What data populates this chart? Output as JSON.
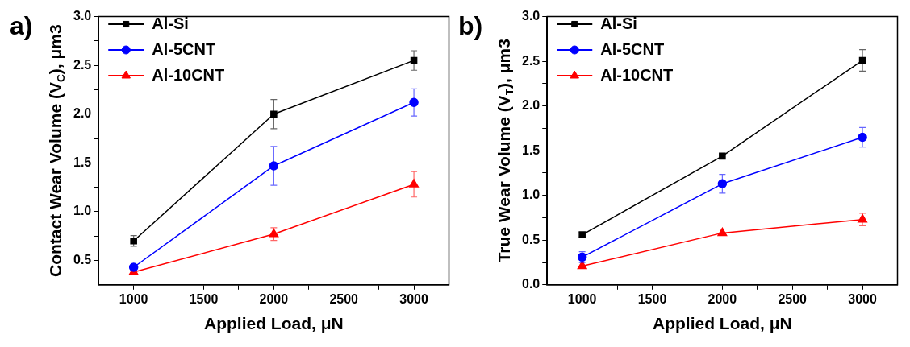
{
  "chart_data": [
    {
      "type": "line",
      "annotations": [
        "a)"
      ],
      "xlabel": "Applied Load, μN",
      "ylabel": "Contact Wear Volume (V$_{C}$), μm3",
      "x": [
        1000,
        2000,
        3000
      ],
      "xlim": [
        750,
        3250
      ],
      "xticks": [
        1000,
        {
          "value": 1250,
          "label": null
        },
        1500,
        {
          "value": 1750,
          "label": null
        },
        2000,
        {
          "value": 2250,
          "label": null
        },
        2500,
        {
          "value": 2750,
          "label": null
        },
        3000
      ],
      "ylim": [
        0.25,
        3.0
      ],
      "yticks": [
        0.5,
        {
          "value": 0.75,
          "label": null
        },
        {
          "value": 1,
          "label": "1.0"
        },
        {
          "value": 1.25,
          "label": null
        },
        1.5,
        {
          "value": 1.75,
          "label": null
        },
        {
          "value": 2,
          "label": "2.0"
        },
        {
          "value": 2.25,
          "label": null
        },
        2.5,
        {
          "value": 2.75,
          "label": null
        },
        {
          "value": 3,
          "label": "3.0"
        }
      ],
      "grid": false,
      "legend": "top left",
      "line_style": "solid",
      "series": [
        {
          "name": "Al-Si",
          "color": "#000000",
          "marker": "square",
          "values": [
            0.7,
            2.0,
            2.55
          ],
          "errors": [
            0.055,
            0.15,
            0.1
          ]
        },
        {
          "name": "Al-5CNT",
          "color": "#0000ff",
          "marker": "circle",
          "values": [
            0.43,
            1.47,
            2.12
          ],
          "errors": [
            null,
            0.2,
            0.14
          ]
        },
        {
          "name": "Al-10CNT",
          "color": "#ff0000",
          "marker": "triangle",
          "values": [
            0.38,
            0.77,
            1.28
          ],
          "errors": [
            null,
            0.065,
            0.13
          ]
        }
      ]
    },
    {
      "type": "line",
      "annotations": [
        "b)"
      ],
      "xlabel": "Applied Load, μN",
      "ylabel": "True Wear Volume (V$_{T}$), μm3",
      "x": [
        1000,
        2000,
        3000
      ],
      "xlim": [
        750,
        3250
      ],
      "xticks": [
        1000,
        {
          "value": 1250,
          "label": null
        },
        1500,
        {
          "value": 1750,
          "label": null
        },
        2000,
        {
          "value": 2250,
          "label": null
        },
        2500,
        {
          "value": 2750,
          "label": null
        },
        3000
      ],
      "ylim": [
        0,
        3.0
      ],
      "yticks": [
        {
          "value": 0,
          "label": "0.0"
        },
        {
          "value": 0.25,
          "label": null
        },
        0.5,
        {
          "value": 0.75,
          "label": null
        },
        {
          "value": 1,
          "label": "1.0"
        },
        {
          "value": 1.25,
          "label": null
        },
        1.5,
        {
          "value": 1.75,
          "label": null
        },
        {
          "value": 2,
          "label": "2.0"
        },
        {
          "value": 2.25,
          "label": null
        },
        2.5,
        {
          "value": 2.75,
          "label": null
        },
        {
          "value": 3,
          "label": "3.0"
        }
      ],
      "grid": false,
      "legend": "top left",
      "line_style": "solid",
      "series": [
        {
          "name": "Al-Si",
          "color": "#000000",
          "marker": "square",
          "values": [
            0.56,
            1.44,
            2.51
          ],
          "errors": [
            0.025,
            null,
            0.12
          ]
        },
        {
          "name": "Al-5CNT",
          "color": "#0000ff",
          "marker": "circle",
          "values": [
            0.31,
            1.13,
            1.65
          ],
          "errors": [
            0.06,
            0.105,
            0.11
          ]
        },
        {
          "name": "Al-10CNT",
          "color": "#ff0000",
          "marker": "triangle",
          "values": [
            0.21,
            0.58,
            0.73
          ],
          "errors": [
            null,
            null,
            0.07
          ]
        }
      ]
    }
  ]
}
